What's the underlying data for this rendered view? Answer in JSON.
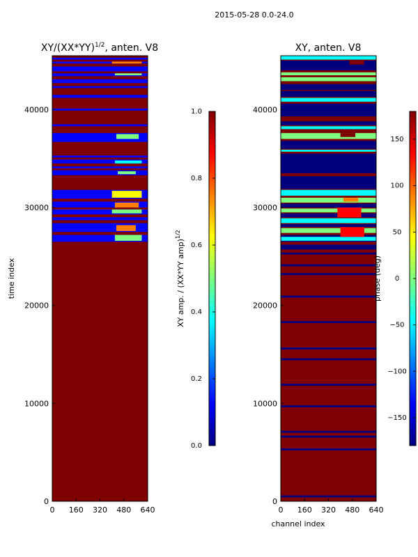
{
  "suptitle": "2015-05-28 0.0-24.0",
  "colormap": [
    "#00007f",
    "#0000ff",
    "#007fff",
    "#00ffff",
    "#7fff7f",
    "#ffff00",
    "#ff7f00",
    "#ff0000",
    "#7f0000"
  ],
  "chart_data": [
    {
      "type": "heatmap",
      "title_main": "XY/(XX*YY)",
      "title_sup": "1/2",
      "title_suffix": ", anten. V8",
      "xlabel": "",
      "ylabel": "time index",
      "xlim": [
        0,
        640
      ],
      "ylim": [
        0,
        45500
      ],
      "xticks": [
        0,
        160,
        320,
        480,
        640
      ],
      "xtick_labels": [
        "0",
        "160",
        "320",
        "480",
        "640"
      ],
      "yticks": [
        0,
        10000,
        20000,
        30000,
        40000
      ],
      "ytick_labels": [
        "0",
        "10000",
        "20000",
        "30000",
        "40000"
      ],
      "background_value": 1.0,
      "blue_bands": [
        [
          26500,
          27200,
          0.1
        ],
        [
          27500,
          28400,
          0.1
        ],
        [
          28700,
          29000,
          0.1
        ],
        [
          29300,
          29800,
          0.1
        ],
        [
          30000,
          30600,
          0.1
        ],
        [
          30900,
          31800,
          0.1
        ],
        [
          33300,
          33800,
          0.1
        ],
        [
          34000,
          34200,
          0.1
        ],
        [
          34500,
          34900,
          0.1
        ],
        [
          35100,
          35300,
          0.1
        ],
        [
          36700,
          37600,
          0.1
        ],
        [
          38300,
          38500,
          0.1
        ],
        [
          39900,
          40100,
          0.1
        ],
        [
          41200,
          41500,
          0.1
        ],
        [
          42200,
          42400,
          0.1
        ],
        [
          42700,
          43100,
          0.1
        ],
        [
          43400,
          43700,
          0.1
        ],
        [
          43900,
          44400,
          0.1
        ],
        [
          44700,
          44900,
          0.1
        ],
        [
          45100,
          45300,
          0.1
        ]
      ],
      "bright_patches": [
        [
          420,
          600,
          26600,
          27200,
          0.55
        ],
        [
          430,
          560,
          27600,
          28200,
          0.7
        ],
        [
          400,
          600,
          29400,
          29800,
          0.5
        ],
        [
          420,
          580,
          30000,
          30500,
          0.8
        ],
        [
          400,
          600,
          31000,
          31700,
          0.6
        ],
        [
          440,
          560,
          33400,
          33700,
          0.45
        ],
        [
          420,
          600,
          34500,
          34800,
          0.4
        ],
        [
          430,
          580,
          37000,
          37500,
          0.55
        ],
        [
          420,
          600,
          43500,
          43700,
          0.5
        ],
        [
          400,
          600,
          44700,
          44900,
          0.7
        ]
      ],
      "colorbar": {
        "label_main": "XY amp. / (XX*YY amp)",
        "label_sup": "1/2",
        "min": 0.0,
        "max": 1.0,
        "ticks": [
          "0.0",
          "0.2",
          "0.4",
          "0.6",
          "0.8",
          "1.0"
        ]
      }
    },
    {
      "type": "heatmap",
      "title_main": "XY, anten. V8",
      "title_sup": "",
      "title_suffix": "",
      "xlabel": "channel index",
      "ylabel": "",
      "xlim": [
        0,
        640
      ],
      "ylim": [
        0,
        45500
      ],
      "xticks": [
        0,
        160,
        320,
        480,
        640
      ],
      "xtick_labels": [
        "0",
        "160",
        "320",
        "480",
        "640"
      ],
      "yticks": [
        0,
        10000,
        20000,
        30000,
        40000
      ],
      "ytick_labels": [
        "0",
        "10000",
        "20000",
        "30000",
        "40000"
      ],
      "background_value": 180,
      "blue_bands": [
        [
          400,
          600,
          -170
        ],
        [
          5200,
          5400,
          -170
        ],
        [
          6500,
          6700,
          -170
        ],
        [
          7000,
          7200,
          -170
        ],
        [
          9600,
          9800,
          -170
        ],
        [
          11800,
          12000,
          -170
        ],
        [
          14400,
          14600,
          -170
        ],
        [
          15500,
          15700,
          -170
        ],
        [
          18200,
          18400,
          -170
        ],
        [
          20800,
          21000,
          -170
        ],
        [
          23100,
          23300,
          -170
        ],
        [
          24000,
          24200,
          -170
        ],
        [
          25200,
          25400,
          -170
        ],
        [
          25700,
          26200,
          -170
        ],
        [
          26500,
          27200,
          -170
        ],
        [
          28000,
          28300,
          -170
        ],
        [
          29000,
          29400,
          -170
        ],
        [
          30000,
          30400,
          -170
        ],
        [
          31900,
          33200,
          -170
        ],
        [
          33500,
          35500,
          -170
        ],
        [
          36000,
          36800,
          -170
        ],
        [
          38400,
          38800,
          -170
        ],
        [
          39300,
          40600,
          -170
        ],
        [
          41300,
          41900,
          -170
        ],
        [
          42000,
          42600,
          -170
        ],
        [
          44000,
          45000,
          -170
        ]
      ],
      "bright_patches": [
        [
          0,
          640,
          26600,
          27000,
          -30
        ],
        [
          0,
          640,
          27400,
          27900,
          -20
        ],
        [
          0,
          640,
          28400,
          28900,
          -30
        ],
        [
          0,
          640,
          29500,
          29900,
          -10
        ],
        [
          0,
          640,
          30500,
          31000,
          -20
        ],
        [
          0,
          640,
          31200,
          31800,
          -40
        ],
        [
          0,
          640,
          35700,
          35900,
          -30
        ],
        [
          0,
          640,
          37000,
          37600,
          -20
        ],
        [
          0,
          640,
          38000,
          38300,
          -30
        ],
        [
          0,
          640,
          40800,
          41200,
          -40
        ],
        [
          0,
          640,
          42900,
          43300,
          -20
        ],
        [
          0,
          640,
          43500,
          43800,
          20
        ],
        [
          0,
          640,
          45100,
          45500,
          -50
        ],
        [
          400,
          560,
          27000,
          28000,
          120
        ],
        [
          380,
          540,
          29000,
          30000,
          150
        ],
        [
          420,
          520,
          30600,
          31000,
          100
        ],
        [
          400,
          500,
          37200,
          37600,
          160
        ],
        [
          460,
          560,
          44600,
          45000,
          170
        ]
      ],
      "colorbar": {
        "label_main": "phase (deg)",
        "label_sup": "",
        "min": -180,
        "max": 180,
        "ticks": [
          "−150",
          "−100",
          "−50",
          "0",
          "50",
          "100",
          "150"
        ]
      }
    }
  ]
}
